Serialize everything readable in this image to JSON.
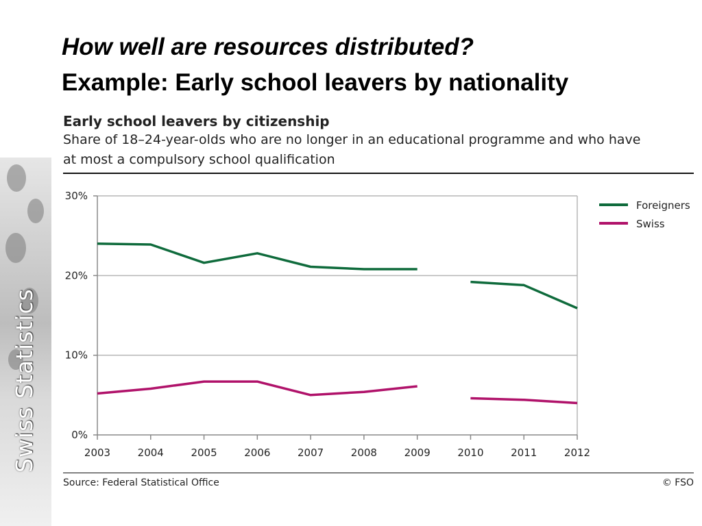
{
  "slide": {
    "title_line1": "How well are resources distributed?",
    "title_line2": "Example: Early school leavers by nationality",
    "brand": "Swiss Statistics"
  },
  "figure": {
    "source": "Source: Federal Statistical Office",
    "copyright": "© FSO"
  },
  "colors": {
    "foreigners": "#0f6b3c",
    "swiss": "#b0126a",
    "grid": "#b5b5b5"
  },
  "chart_data": {
    "type": "line",
    "title": "Early school leavers by citizenship",
    "subtitle": "Share of 18–24-year-olds who are no longer in an educational programme and who have at most a compulsory school qualification",
    "categories": [
      "2003",
      "2004",
      "2005",
      "2006",
      "2007",
      "2008",
      "2009",
      "2010",
      "2011",
      "2012"
    ],
    "ylim": [
      0,
      30
    ],
    "yticks": [
      "0%",
      "10%",
      "20%",
      "30%"
    ],
    "grid": true,
    "legend": "top-right",
    "series_break_after": "2009",
    "series": [
      {
        "name": "Foreigners",
        "values": [
          24.0,
          23.9,
          21.6,
          22.8,
          21.1,
          20.8,
          20.8,
          19.2,
          18.8,
          15.9
        ]
      },
      {
        "name": "Swiss",
        "values": [
          5.2,
          5.8,
          6.7,
          6.7,
          5.0,
          5.4,
          6.1,
          4.6,
          4.4,
          4.0
        ]
      }
    ]
  }
}
